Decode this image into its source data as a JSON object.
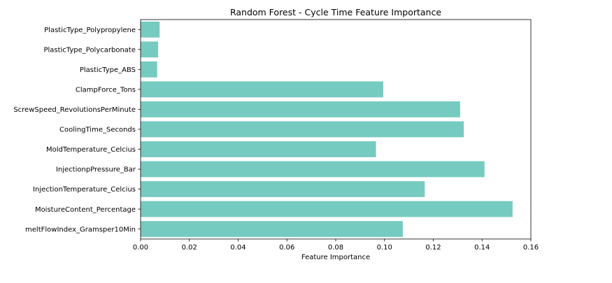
{
  "chart_data": {
    "type": "bar",
    "orientation": "horizontal",
    "title": "Random Forest - Cycle Time Feature Importance",
    "xlabel": "Feature Importance",
    "ylabel": "",
    "xlim": [
      0,
      0.16
    ],
    "xticks": [
      0.0,
      0.02,
      0.04,
      0.06,
      0.08,
      0.1,
      0.12,
      0.14,
      0.16
    ],
    "xtick_labels": [
      "0.00",
      "0.02",
      "0.04",
      "0.06",
      "0.08",
      "0.10",
      "0.12",
      "0.14",
      "0.16"
    ],
    "grid": false,
    "bar_color": "#76cbc1",
    "categories": [
      "meltFlowIndex_Gramsper10Min",
      "MoistureContent_Percentage",
      "InjectionTemperature_Celcius",
      "InjectionpPressure_Bar",
      "MoldTemperature_Celcius",
      "CoolingTime_Seconds",
      "ScrewSpeed_RevolutionsPerMinute",
      "ClampForce_Tons",
      "PlasticType_ABS",
      "PlasticType_Polycarbonate",
      "PlasticType_Polypropylene"
    ],
    "values": [
      0.1075,
      0.1525,
      0.1165,
      0.141,
      0.0965,
      0.1325,
      0.131,
      0.0995,
      0.0068,
      0.0072,
      0.0078
    ]
  }
}
